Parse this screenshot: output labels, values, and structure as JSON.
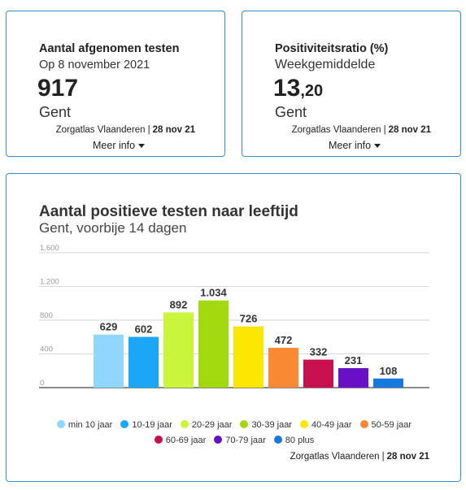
{
  "card1": {
    "title": "Aantal afgenomen testen",
    "subtitle": "Op 8 november 2021",
    "value": "917",
    "place": "Gent",
    "source": "Zorgatlas Vlaanderen",
    "separator": "|",
    "date": "28 nov 21",
    "more": "Meer info"
  },
  "card2": {
    "title": "Positiviteitsratio (%)",
    "subtitle": "Weekgemiddelde",
    "value_int": "13",
    "value_dec": ",20",
    "place": "Gent",
    "source": "Zorgatlas Vlaanderen",
    "separator": "|",
    "date": "28 nov 21",
    "more": "Meer info"
  },
  "card3": {
    "source": "Zorgatlas Vlaanderen",
    "separator": "|",
    "date": "28 nov 21"
  },
  "chart_data": {
    "type": "bar",
    "title": "Aantal positieve testen naar leeftijd",
    "subtitle": "Gent, voorbije 14 dagen",
    "ylim": [
      0,
      1600
    ],
    "yticks": [
      0,
      400,
      800,
      1200,
      1600
    ],
    "ytick_labels": [
      "0",
      "400",
      "800",
      "1.200",
      "1.600"
    ],
    "grid": true,
    "legend_position": "bottom",
    "categories": [
      "min 10 jaar",
      "10-19 jaar",
      "20-29 jaar",
      "30-39 jaar",
      "40-49 jaar",
      "50-59 jaar",
      "60-69 jaar",
      "70-79 jaar",
      "80 plus"
    ],
    "values": [
      629,
      602,
      892,
      1034,
      726,
      472,
      332,
      231,
      108
    ],
    "value_labels": [
      "629",
      "602",
      "892",
      "1.034",
      "726",
      "472",
      "332",
      "231",
      "108"
    ],
    "colors": [
      "#8fd7ff",
      "#1aa7f5",
      "#c9f53a",
      "#a2d80e",
      "#fbe600",
      "#f98a33",
      "#c8104f",
      "#6a0fc8",
      "#1779e0"
    ]
  }
}
